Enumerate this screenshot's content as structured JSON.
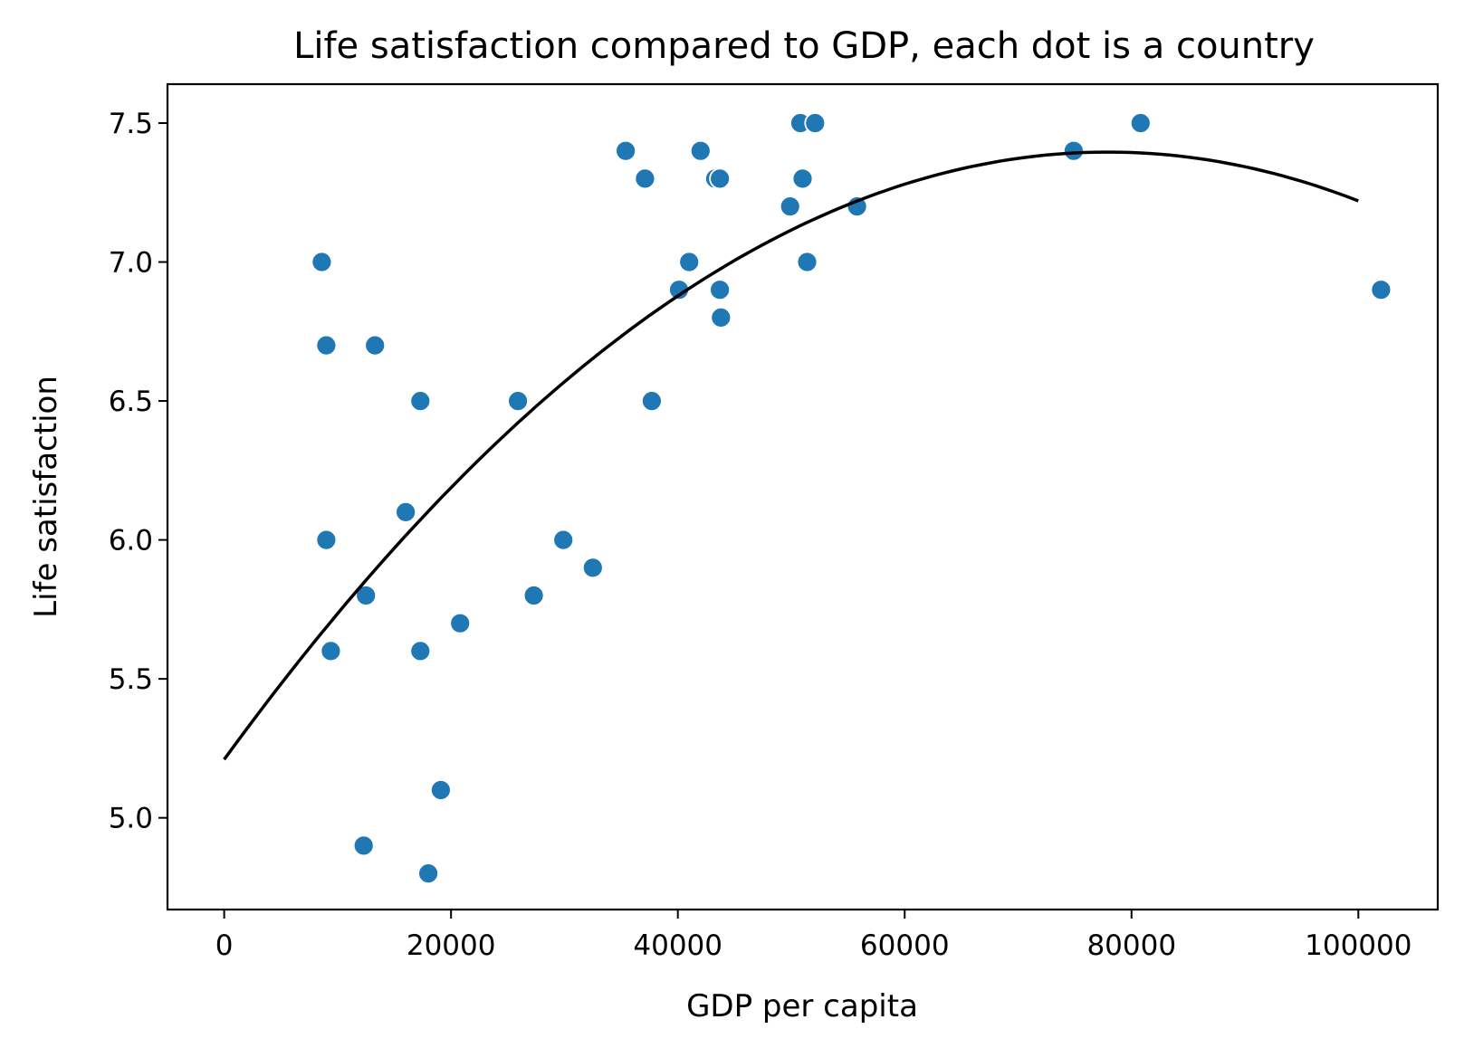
{
  "chart_data": {
    "type": "scatter",
    "title": "Life satisfaction compared to GDP, each dot is a country",
    "xlabel": "GDP per capita",
    "ylabel": "Life satisfaction",
    "xlim": [
      -5000,
      107000
    ],
    "ylim": [
      4.67,
      7.64
    ],
    "xticks": [
      0,
      20000,
      40000,
      60000,
      80000,
      100000
    ],
    "xtick_labels": [
      "0",
      "20000",
      "40000",
      "60000",
      "80000",
      "100000"
    ],
    "yticks": [
      5.0,
      5.5,
      6.0,
      6.5,
      7.0,
      7.5
    ],
    "ytick_labels": [
      "5.0",
      "5.5",
      "6.0",
      "6.5",
      "7.0",
      "7.5"
    ],
    "grid": false,
    "legend": "none",
    "points_color": "#1f77b4",
    "fit_color": "#000000",
    "points": [
      {
        "x": 8600,
        "y": 7.0
      },
      {
        "x": 9000,
        "y": 6.7
      },
      {
        "x": 9000,
        "y": 6.0
      },
      {
        "x": 9400,
        "y": 5.6
      },
      {
        "x": 12300,
        "y": 4.9
      },
      {
        "x": 12500,
        "y": 5.8
      },
      {
        "x": 13300,
        "y": 6.7
      },
      {
        "x": 16000,
        "y": 6.1
      },
      {
        "x": 17300,
        "y": 6.5
      },
      {
        "x": 17300,
        "y": 5.6
      },
      {
        "x": 18000,
        "y": 4.8
      },
      {
        "x": 19100,
        "y": 5.1
      },
      {
        "x": 20800,
        "y": 5.7
      },
      {
        "x": 25900,
        "y": 6.5
      },
      {
        "x": 27300,
        "y": 5.8
      },
      {
        "x": 29900,
        "y": 6.0
      },
      {
        "x": 32500,
        "y": 5.9
      },
      {
        "x": 35400,
        "y": 7.4
      },
      {
        "x": 37100,
        "y": 7.3
      },
      {
        "x": 37700,
        "y": 6.5
      },
      {
        "x": 40100,
        "y": 6.9
      },
      {
        "x": 41000,
        "y": 7.0
      },
      {
        "x": 42000,
        "y": 7.4
      },
      {
        "x": 43300,
        "y": 7.3
      },
      {
        "x": 43700,
        "y": 7.3
      },
      {
        "x": 43700,
        "y": 6.9
      },
      {
        "x": 43800,
        "y": 6.8
      },
      {
        "x": 49900,
        "y": 7.2
      },
      {
        "x": 50800,
        "y": 7.5
      },
      {
        "x": 51000,
        "y": 7.3
      },
      {
        "x": 51400,
        "y": 7.0
      },
      {
        "x": 52100,
        "y": 7.5
      },
      {
        "x": 55800,
        "y": 7.2
      },
      {
        "x": 74900,
        "y": 7.4
      },
      {
        "x": 80800,
        "y": 7.5
      },
      {
        "x": 102000,
        "y": 6.9
      }
    ],
    "fit_curve": {
      "type": "quadratic",
      "x_range": [
        0,
        100000
      ],
      "coefficients": [
        5.21,
        5.61e-05,
        -3.6e-10
      ]
    }
  }
}
